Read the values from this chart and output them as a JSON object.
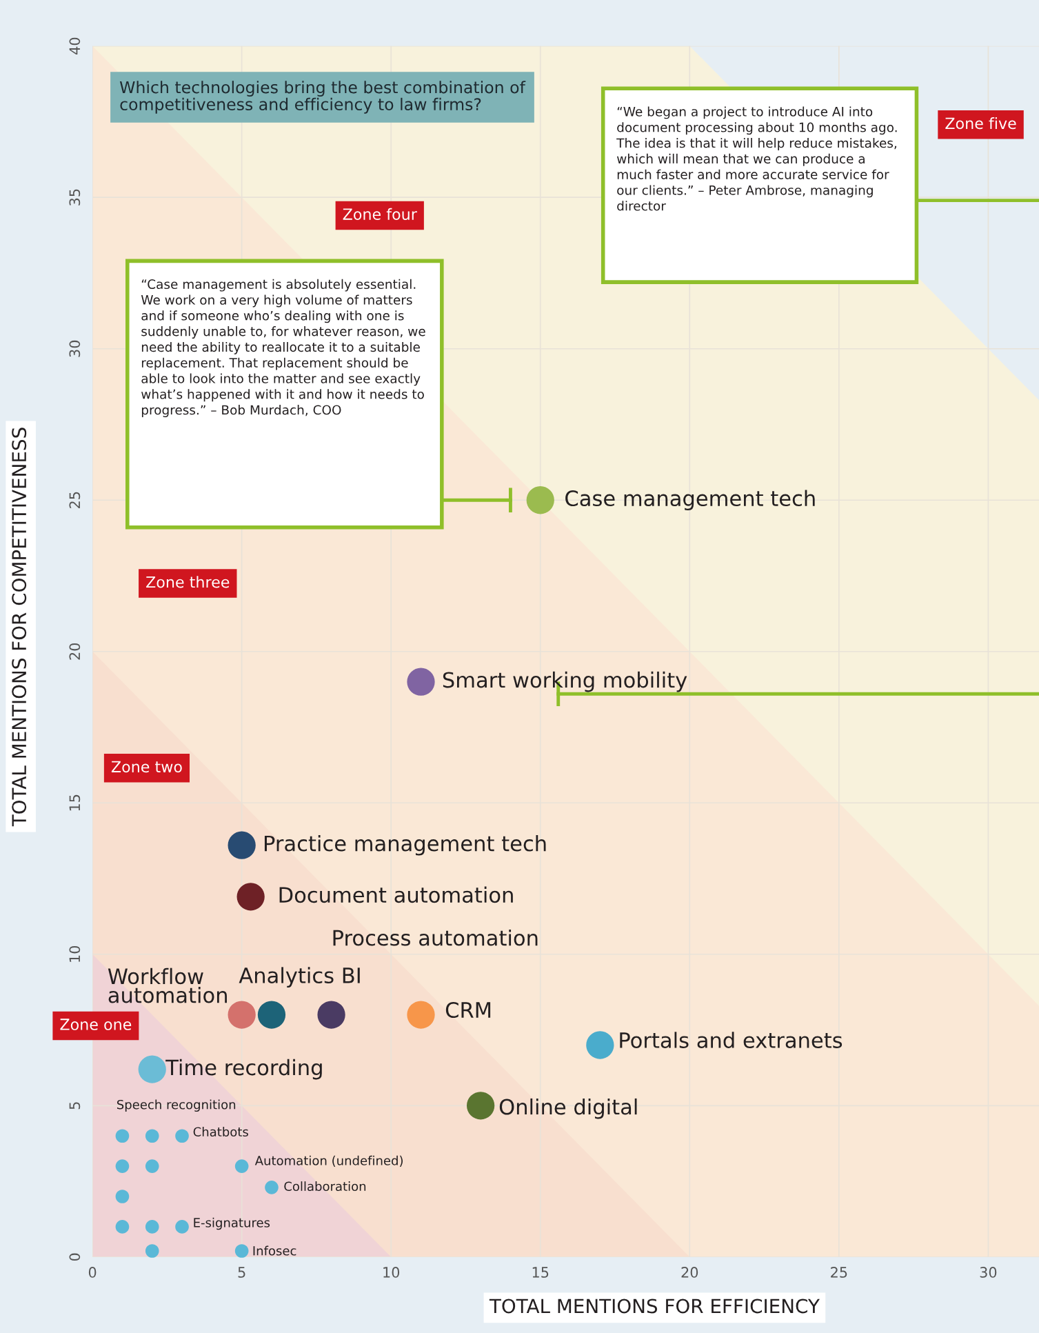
{
  "chart_data": {
    "type": "scatter",
    "title": "Which technologies bring the best combination of competitiveness and efficiency to law firms?",
    "xlabel": "TOTAL MENTIONS FOR EFFICIENCY",
    "ylabel": "TOTAL MENTIONS FOR COMPETITIVENESS",
    "xlim": [
      0,
      31.7
    ],
    "ylim": [
      0,
      40
    ],
    "xticks": [
      0,
      5,
      10,
      15,
      20,
      25,
      30
    ],
    "yticks": [
      0,
      5,
      10,
      15,
      20,
      25,
      30,
      35,
      40
    ],
    "grid": true,
    "marker": "circle",
    "series": [
      {
        "x": [
          15,
          11,
          5,
          5.3,
          5,
          6,
          8,
          11,
          17,
          2,
          13
        ],
        "values": [
          25,
          19,
          13.6,
          11.9,
          8,
          8,
          8,
          8,
          7,
          6.2,
          5
        ],
        "colors": [
          "#9bbb4f",
          "#8064a2",
          "#284b72",
          "#6e2126",
          "#d4716c",
          "#1d6378",
          "#4a3b63",
          "#f7964a",
          "#4aaccc",
          "#6bbcd6",
          "#5a7530"
        ]
      },
      {
        "color": "#5ab8d7",
        "x": [
          1,
          2,
          3,
          1,
          2,
          5,
          1,
          6,
          1,
          2,
          3,
          2,
          5
        ],
        "values": [
          4,
          4,
          4,
          3,
          3,
          3,
          2,
          2.3,
          1,
          1,
          1,
          0.2,
          0.2
        ]
      }
    ],
    "annotations": [
      {
        "text": "Case management tech",
        "x": 15,
        "y": 25
      },
      {
        "text": "Smart working mobility",
        "x": 11,
        "y": 19
      },
      {
        "text": "Practice management tech",
        "x": 5,
        "y": 13.6
      },
      {
        "text": "Document automation",
        "x": 5.3,
        "y": 11.9
      },
      {
        "text": "Workflow\nautomation",
        "x": 5,
        "y": 8
      },
      {
        "text": "Analytics BI",
        "x": 6,
        "y": 8
      },
      {
        "text": "CRM",
        "x": 11,
        "y": 8
      },
      {
        "text": "Portals and extranets",
        "x": 17,
        "y": 7
      },
      {
        "text": "Time recording",
        "x": 2,
        "y": 6.2
      },
      {
        "text": "Online digital",
        "x": 13,
        "y": 5
      },
      {
        "text": "Speech recognition",
        "x": 1,
        "y": 4
      },
      {
        "text": "Chatbots",
        "x": 3,
        "y": 4
      },
      {
        "text": "Automation (undefined)",
        "x": 5,
        "y": 3
      },
      {
        "text": "Collaboration",
        "x": 6,
        "y": 2.3
      },
      {
        "text": "E-signatures",
        "x": 3,
        "y": 1
      },
      {
        "text": "Infosec",
        "x": 5,
        "y": 0.2
      },
      "Process automation",
      "Zone one",
      "Zone two",
      "Zone three",
      "Zone four",
      "Zone five",
      "“Case management is absolutely essential. We work on a very high volume of matters and if someone who’s dealing with one is suddenly unable to, for whatever reason, we need the ability to reallocate it to a suitable replacement. That replacement should be able to look into the matter and see exactly what’s happened with it and how it needs to progress.” – Bob Murdach, COO",
      "“We began a project to introduce AI into document processing about 10 months ago. The idea is that it will help reduce mistakes, which will mean that we can produce a much faster and more accurate service for our clients.” – Peter Ambrose, managing director"
    ]
  }
}
